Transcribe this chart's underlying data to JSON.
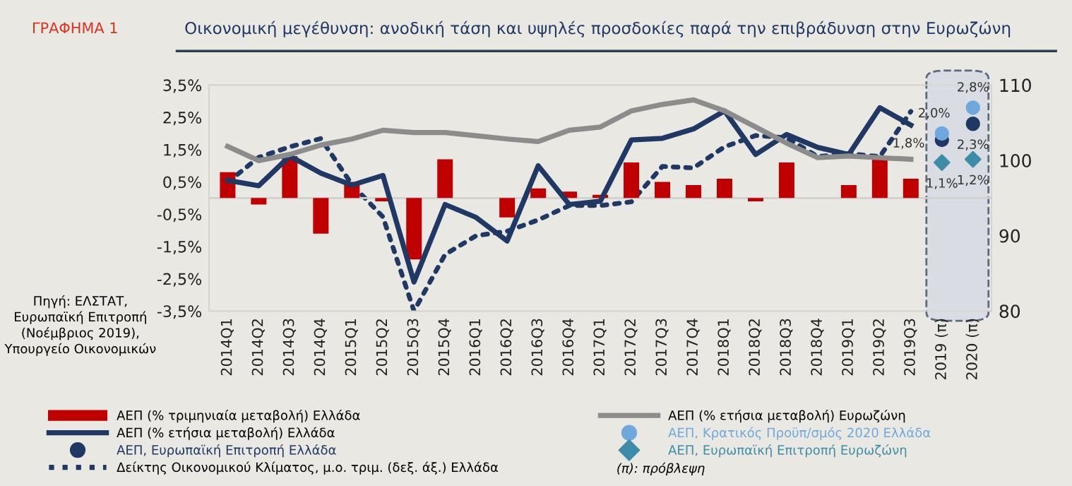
{
  "chart_data": {
    "type": "bar",
    "title": "Οικονομική μεγέθυνση: ανοδική τάση και υψηλές προσδοκίες παρά την επιβράδυνση στην Ευρωζώνη",
    "categories": [
      "2014Q1",
      "2014Q2",
      "2014Q3",
      "2014Q4",
      "2015Q1",
      "2015Q2",
      "2015Q3",
      "2015Q4",
      "2016Q1",
      "2016Q2",
      "2016Q3",
      "2016Q4",
      "2017Q1",
      "2017Q2",
      "2017Q3",
      "2017Q4",
      "2018Q1",
      "2018Q2",
      "2018Q3",
      "2018Q4",
      "2019Q1",
      "2019Q2",
      "2019Q3",
      "2019 (π)",
      "2020 (π)"
    ],
    "series": [
      {
        "name": "ΑΕΠ (% τριμηνιαία μεταβολή) Ελλάδα",
        "color": "#c00000",
        "values": [
          0.8,
          -0.2,
          1.3,
          -1.1,
          0.5,
          -0.1,
          -1.9,
          1.2,
          0.0,
          -0.6,
          0.3,
          0.2,
          0.1,
          1.1,
          0.5,
          0.4,
          0.6,
          -0.1,
          1.1,
          0.0,
          0.4,
          1.2,
          0.6,
          null,
          null
        ]
      },
      {
        "name": "ΑΕΠ (% ετήσια μεταβολή) Ελλάδα",
        "type": "line",
        "color": "#1f3864",
        "line_style": "solid",
        "values": [
          0.55,
          0.38,
          1.3,
          0.77,
          0.4,
          0.7,
          -2.6,
          -0.2,
          -0.6,
          -1.33,
          1.0,
          -0.2,
          -0.1,
          1.8,
          1.85,
          2.14,
          2.7,
          1.35,
          1.97,
          1.57,
          1.35,
          2.8,
          2.26,
          null,
          null
        ]
      },
      {
        "name": "ΑΕΠ, Ευρωπαϊκή Επιτροπή Ελλάδα",
        "type": "scatter",
        "color": "#1f3864",
        "marker": "circle",
        "values": [
          null,
          null,
          null,
          null,
          null,
          null,
          null,
          null,
          null,
          null,
          null,
          null,
          null,
          null,
          null,
          null,
          null,
          null,
          null,
          null,
          null,
          null,
          null,
          1.8,
          2.3
        ],
        "value_labels": [
          null,
          null,
          null,
          null,
          null,
          null,
          null,
          null,
          null,
          null,
          null,
          null,
          null,
          null,
          null,
          null,
          null,
          null,
          null,
          null,
          null,
          null,
          null,
          "1,8%",
          "2,3%"
        ]
      },
      {
        "name": "Δείκτης Οικονομικού Κλίματος, μ.ο. τριμ. (δεξ. άξ.) Ελλάδα",
        "type": "line",
        "axis": "y2",
        "color": "#1f3864",
        "line_style": "dotted",
        "values": [
          97.1,
          100.4,
          101.8,
          102.9,
          96.8,
          92.5,
          80.0,
          87.5,
          90.0,
          90.6,
          92.1,
          94.0,
          94.0,
          94.5,
          99.2,
          99.0,
          101.8,
          103.3,
          103.0,
          100.5,
          100.9,
          100.5,
          106.5,
          null,
          null
        ]
      },
      {
        "name": "ΑΕΠ (% ετήσια μεταβολή) Ευρωζώνη",
        "type": "line",
        "color": "#8c8c8c",
        "line_style": "solid",
        "values": [
          1.6,
          1.16,
          1.35,
          1.64,
          1.83,
          2.1,
          2.03,
          2.03,
          1.93,
          1.83,
          1.75,
          2.1,
          2.2,
          2.7,
          2.9,
          3.04,
          2.7,
          2.2,
          1.7,
          1.25,
          1.3,
          1.25,
          1.2,
          null,
          null
        ]
      },
      {
        "name": "ΑΕΠ, Κρατικός Προϋπ/σμός 2020 Ελλάδα",
        "type": "scatter",
        "color": "#6fa8dc",
        "marker": "circle",
        "values": [
          null,
          null,
          null,
          null,
          null,
          null,
          null,
          null,
          null,
          null,
          null,
          null,
          null,
          null,
          null,
          null,
          null,
          null,
          null,
          null,
          null,
          null,
          null,
          2.0,
          2.8
        ],
        "value_labels": [
          null,
          null,
          null,
          null,
          null,
          null,
          null,
          null,
          null,
          null,
          null,
          null,
          null,
          null,
          null,
          null,
          null,
          null,
          null,
          null,
          null,
          null,
          null,
          "2,0%",
          "2,8%"
        ]
      },
      {
        "name": "ΑΕΠ, Ευρωπαϊκή Επιτροπή Ευρωζώνη",
        "type": "scatter",
        "color": "#3d8ca8",
        "marker": "diamond",
        "values": [
          null,
          null,
          null,
          null,
          null,
          null,
          null,
          null,
          null,
          null,
          null,
          null,
          null,
          null,
          null,
          null,
          null,
          null,
          null,
          null,
          null,
          null,
          null,
          1.1,
          1.2
        ],
        "value_labels": [
          null,
          null,
          null,
          null,
          null,
          null,
          null,
          null,
          null,
          null,
          null,
          null,
          null,
          null,
          null,
          null,
          null,
          null,
          null,
          null,
          null,
          null,
          null,
          "1,1%",
          "1,2%"
        ]
      }
    ],
    "ylim": [
      -3.5,
      3.5
    ],
    "yticks": [
      {
        "value": -3.5,
        "label": "-3,5%"
      },
      {
        "value": -2.5,
        "label": "-2,5%"
      },
      {
        "value": -1.5,
        "label": "-1,5%"
      },
      {
        "value": -0.5,
        "label": "-0,5%"
      },
      {
        "value": 0.5,
        "label": "0,5%"
      },
      {
        "value": 1.5,
        "label": "1,5%"
      },
      {
        "value": 2.5,
        "label": "2,5%"
      },
      {
        "value": 3.5,
        "label": "3,5%"
      }
    ],
    "y2lim": [
      80,
      110
    ],
    "y2ticks": [
      80,
      90,
      100,
      110
    ],
    "ref_lines": [
      {
        "axis": "y",
        "value": 0,
        "color": "#d0d0d0"
      }
    ],
    "bands": [
      {
        "axis": "x",
        "from": "2019 (π)",
        "to": "2020 (π)",
        "color": "#d9dde3"
      }
    ],
    "grid": false,
    "legend": "bottom",
    "annotations": [
      "ΓΡΑΦΗΜΑ 1",
      "Πηγή: ΕΛΣΤΑΤ, Ευρωπαϊκή Επιτροπή (Νοέμβριος 2019), Υπουργείο Οικονομικών",
      "(π): πρόβλεψη"
    ]
  }
}
